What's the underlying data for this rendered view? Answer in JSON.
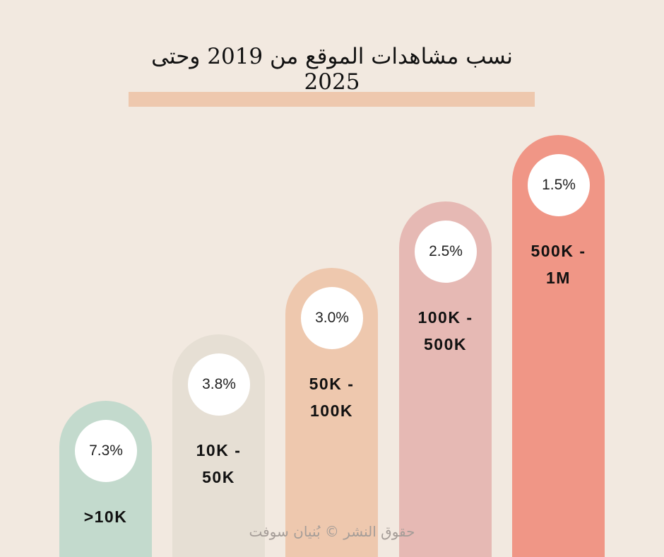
{
  "chart_data": {
    "type": "bar",
    "title": "نسب مشاهدات الموقع من 2019 وحتى 2025",
    "categories": [
      ">10K",
      "10K - 50K",
      "50K - 100K",
      "100K - 500K",
      "500K - 1M"
    ],
    "values": [
      7.3,
      3.8,
      3.0,
      2.5,
      1.5
    ],
    "value_labels": [
      "7.3%",
      "3.8%",
      "3.0%",
      "2.5%",
      "1.5%"
    ],
    "colors": [
      "#c3dacd",
      "#e6dfd4",
      "#eec8ae",
      "#e6b9b4",
      "#f09686"
    ],
    "grid": false
  },
  "title_bar_color": "#eec8ae",
  "watermark": "حقوق النشر © بُنيان سوفت"
}
